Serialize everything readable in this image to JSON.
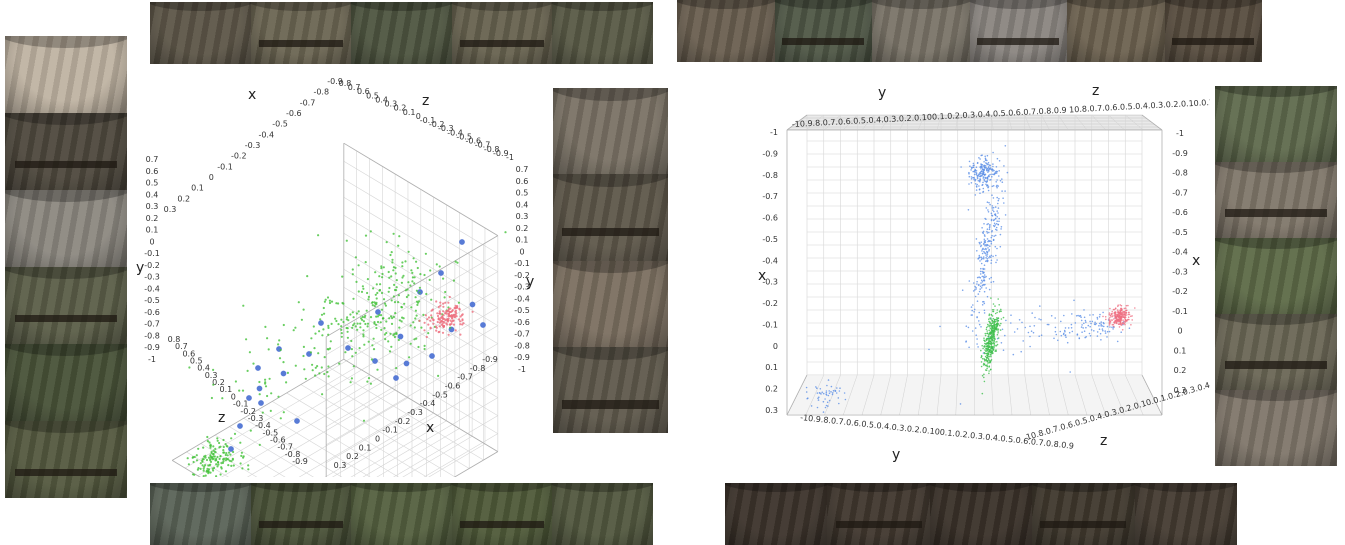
{
  "strips": {
    "top_left": {
      "tiles": [
        "#5d5648",
        "#6b6552",
        "#4e5540",
        "#67624f",
        "#595a46"
      ]
    },
    "top_right": {
      "tiles": [
        "#6a5f50",
        "#4f5746",
        "#7a7468",
        "#8a8580",
        "#6d6250",
        "#584d3f"
      ]
    },
    "bottom_left": {
      "tiles": [
        "#5a6357",
        "#4a5238",
        "#54603f",
        "#4f5a39",
        "#52583f"
      ]
    },
    "bottom_right": {
      "tiles": [
        "#3c332b",
        "#40372e",
        "#3a3129",
        "#3f382d",
        "#443b31"
      ]
    },
    "left": {
      "tiles": [
        "#bfb3a2",
        "#4e483d",
        "#8c8880",
        "#5b5e48",
        "#485238",
        "#54593f"
      ]
    },
    "right_a": {
      "tiles": [
        "#7a7265",
        "#5e574a",
        "#7b6f60",
        "#5f594c"
      ]
    },
    "right_b": {
      "tiles": [
        "#5f6a4d",
        "#80776a",
        "#5d6a47",
        "#6a6655",
        "#7f766a"
      ]
    }
  },
  "chart_data": [
    {
      "type": "scatter",
      "axes_3d": true,
      "axis_labels": {
        "x": "x",
        "y": "y",
        "z": "z"
      },
      "back_labels": {
        "x": "x",
        "y": "y",
        "z": "z"
      },
      "grid": true,
      "ticks": {
        "x_top": [
          "0.3",
          "0.2",
          "0.1",
          "0",
          "-0.1",
          "-0.2",
          "-0.3",
          "-0.4",
          "-0.5",
          "-0.6",
          "-0.7",
          "-0.8",
          "-0.9"
        ],
        "z_top": [
          "0.8",
          "0.7",
          "0.6",
          "0.5",
          "0.4",
          "0.3",
          "0.2",
          "0.1",
          "0",
          "-0.1",
          "-0.2",
          "-0.3",
          "-0.4",
          "-0.5",
          "-0.6",
          "-0.7",
          "-0.8",
          "-0.9",
          "-1"
        ],
        "y_left": [
          "0.7",
          "0.6",
          "0.5",
          "0.4",
          "0.3",
          "0.2",
          "0.1",
          "0",
          "-0.1",
          "-0.2",
          "-0.3",
          "-0.4",
          "-0.5",
          "-0.6",
          "-0.7",
          "-0.8",
          "-0.9",
          "-1"
        ],
        "y_right": [
          "0.7",
          "0.6",
          "0.5",
          "0.4",
          "0.3",
          "0.2",
          "0.1",
          "0",
          "-0.1",
          "-0.2",
          "-0.3",
          "-0.4",
          "-0.5",
          "-0.6",
          "-0.7",
          "-0.8",
          "-0.9",
          "-1"
        ],
        "z_bottom": [
          "0.8",
          "0.7",
          "0.6",
          "0.5",
          "0.4",
          "0.3",
          "0.2",
          "0.1",
          "0",
          "-0.1",
          "-0.2",
          "-0.3",
          "-0.4",
          "-0.5",
          "-0.6",
          "-0.7",
          "-0.8",
          "-0.9"
        ],
        "x_bottom": [
          "0.3",
          "0.2",
          "0.1",
          "0",
          "-0.1",
          "-0.2",
          "-0.3",
          "-0.4",
          "-0.5",
          "-0.6",
          "-0.7",
          "-0.8",
          "-0.9"
        ]
      },
      "series": [
        {
          "color": "#4f74d4",
          "clusters": [
            {
              "p": [
                [
                  -0.9,
                  -0.35,
                  0.1
                ],
                [
                  -0.85,
                  -0.3,
                  0.2
                ],
                [
                  -0.8,
                  -0.25,
                  0.15
                ],
                [
                  -0.7,
                  -0.1,
                  0.2
                ],
                [
                  -0.6,
                  0.0,
                  0.1
                ],
                [
                  -0.4,
                  0.1,
                  -0.1
                ],
                [
                  -0.2,
                  0.05,
                  -0.4
                ],
                [
                  0.0,
                  0.1,
                  -0.6
                ],
                [
                  0.1,
                  0.2,
                  -0.7
                ],
                [
                  0.2,
                  -0.5,
                  -0.6
                ],
                [
                  0.1,
                  -0.6,
                  -0.4
                ],
                [
                  0.0,
                  -0.4,
                  -0.3
                ],
                [
                  -0.3,
                  -0.7,
                  0.1
                ],
                [
                  -0.1,
                  -0.45,
                  -0.55
                ],
                [
                  0.2,
                  0.4,
                  -0.8
                ],
                [
                  -0.5,
                  -0.6,
                  0.4
                ],
                [
                  -0.4,
                  -0.8,
                  0.5
                ],
                [
                  0.3,
                  -0.35,
                  -0.9
                ],
                [
                  0.15,
                  -0.3,
                  -0.75
                ],
                [
                  -0.65,
                  -0.2,
                  0.05
                ],
                [
                  -0.2,
                  -0.2,
                  -0.2
                ],
                [
                  0.05,
                  -0.25,
                  -0.45
                ],
                [
                  -0.35,
                  -0.15,
                  0.0
                ],
                [
                  0.25,
                  -0.15,
                  -0.85
                ]
              ]
            }
          ]
        },
        {
          "color": "#44c23a",
          "clusters": [
            {
              "c": [
                -0.05,
                0.05,
                -0.35
              ],
              "s": [
                0.25,
                0.25,
                0.2
              ],
              "n": 260
            },
            {
              "c": [
                -0.55,
                -0.85,
                0.55
              ],
              "s": [
                0.08,
                0.1,
                0.08
              ],
              "n": 160
            },
            {
              "c": [
                -0.4,
                -0.2,
                0.0
              ],
              "s": [
                0.25,
                0.2,
                0.3
              ],
              "n": 90
            }
          ]
        },
        {
          "color": "#ee6e7e",
          "clusters": [
            {
              "c": [
                0.2,
                -0.2,
                -0.7
              ],
              "s": [
                0.05,
                0.06,
                0.06
              ],
              "n": 140
            }
          ]
        }
      ]
    },
    {
      "type": "scatter",
      "axes_3d": true,
      "axis_labels": {
        "x": "x",
        "y": "y",
        "z": "z"
      },
      "back_labels": {
        "x": "x",
        "y": "y",
        "z": "z"
      },
      "grid": true,
      "ticks": {
        "top": "-10.9.8.0.7.0.6.0.5.0.4.0.3.0.2.0.100.1.0.2.0.3.0.4.0.5.0.6.0.7.0.8.0.9 10.8.0.7.0.6.0.5.0.4.0.3.0.2.0.10.0.1.0.2.0.3.0.4.0.5.0.6.0.7.0.8.9",
        "bottom_y": "-10.9.8.0.7.0.6.0.5.0.4.0.3.0.2.0.100.1.0.2.0.3.0.4.0.5.0.6.0.7.0.8.0.9",
        "bottom_z": "10.8.0.7.0.6.0.5.0.4.0.3.0.2.0.10.0.1.0.2.0.3.0.4.0.5.0.6.0.7.0.8.9",
        "x_left": [
          "-1",
          "-0.9",
          "-0.8",
          "-0.7",
          "-0.6",
          "-0.5",
          "-0.4",
          "-0.3",
          "-0.2",
          "-0.1",
          "0",
          "0.1",
          "0.2",
          "0.3"
        ],
        "x_right": [
          "-1",
          "-0.9",
          "-0.8",
          "-0.7",
          "-0.6",
          "-0.5",
          "-0.4",
          "-0.3",
          "-0.2",
          "-0.1",
          "0",
          "0.1",
          "0.2",
          "0.3"
        ]
      },
      "series": [
        {
          "color": "#5b8fe6",
          "clusters": [
            {
              "c": [
                -0.8,
                0.0,
                0.0
              ],
              "s": [
                0.04,
                0.04,
                0.04
              ],
              "n": 200
            },
            {
              "c": [
                -0.45,
                0.1,
                0.0
              ],
              "s": [
                0.18,
                0.03,
                0.03
              ],
              "n": 260
            },
            {
              "c": [
                -0.1,
                0.8,
                0.0
              ],
              "s": [
                0.03,
                0.1,
                0.03
              ],
              "n": 90
            },
            {
              "c": [
                0.2,
                -0.7,
                0.0
              ],
              "s": [
                0.03,
                0.06,
                0.03
              ],
              "n": 50
            },
            {
              "c": [
                -0.1,
                0.4,
                0.0
              ],
              "s": [
                0.06,
                0.25,
                0.03
              ],
              "n": 60
            }
          ]
        },
        {
          "color": "#3fbf4c",
          "clusters": [
            {
              "c": [
                -0.05,
                0.22,
                0.0
              ],
              "s": [
                0.07,
                0.02,
                0.02
              ],
              "n": 380
            }
          ]
        },
        {
          "color": "#ef6f82",
          "clusters": [
            {
              "c": [
                -0.15,
                0.95,
                0.0
              ],
              "s": [
                0.02,
                0.03,
                0.02
              ],
              "n": 240
            }
          ]
        }
      ]
    }
  ]
}
